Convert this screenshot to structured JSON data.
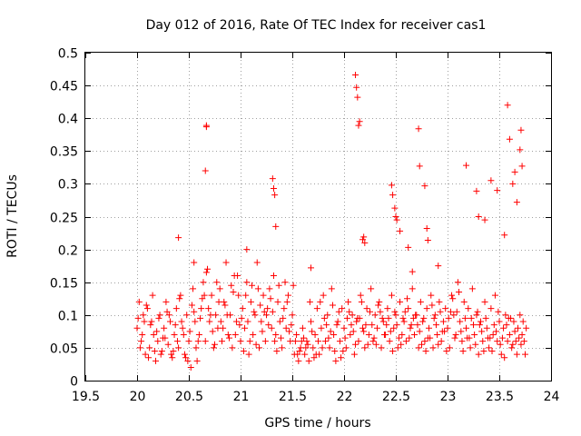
{
  "chart_data": {
    "type": "scatter",
    "title": "Day 012 of 2016, Rate Of TEC Index for receiver cas1",
    "xlabel": "GPS time / hours",
    "ylabel": "ROTI / TECUs",
    "xlim": [
      19.5,
      24
    ],
    "ylim": [
      0,
      0.5
    ],
    "xticks": [
      "19.5",
      "20",
      "20.5",
      "21",
      "21.5",
      "22",
      "22.5",
      "23",
      "23.5",
      "24"
    ],
    "yticks": [
      "0",
      "0.05",
      "0.1",
      "0.15",
      "0.2",
      "0.25",
      "0.3",
      "0.35",
      "0.4",
      "0.45",
      "0.5"
    ],
    "grid": true,
    "marker": "+",
    "color": "#ff0000",
    "series": [
      {
        "name": "ROTI",
        "x": [
          20.0,
          20.02,
          20.04,
          20.06,
          20.08,
          20.1,
          20.12,
          20.14,
          20.16,
          20.18,
          20.2,
          20.22,
          20.24,
          20.26,
          20.28,
          20.3,
          20.32,
          20.34,
          20.36,
          20.38,
          20.4,
          20.42,
          20.44,
          20.46,
          20.48,
          20.5,
          20.52,
          20.54,
          20.56,
          20.58,
          20.6,
          20.62,
          20.64,
          20.66,
          20.68,
          20.7,
          20.72,
          20.74,
          20.76,
          20.78,
          20.8,
          20.82,
          20.84,
          20.86,
          20.88,
          20.9,
          20.92,
          20.94,
          20.96,
          20.98,
          21.0,
          21.02,
          21.04,
          21.06,
          21.08,
          21.1,
          21.12,
          21.14,
          21.16,
          21.18,
          21.2,
          21.22,
          21.24,
          21.26,
          21.28,
          21.3,
          21.32,
          21.34,
          21.36,
          21.38,
          21.4,
          21.42,
          21.44,
          21.46,
          21.48,
          21.5,
          21.52,
          21.54,
          21.56,
          21.58,
          21.6,
          21.62,
          21.64,
          21.66,
          21.68,
          21.7,
          21.72,
          21.74,
          21.76,
          21.78,
          21.8,
          21.82,
          21.84,
          21.86,
          21.88,
          21.9,
          21.92,
          21.94,
          21.96,
          21.98,
          22.0,
          22.02,
          22.04,
          22.06,
          22.08,
          22.1,
          22.12,
          22.14,
          22.16,
          22.18,
          22.2,
          22.22,
          22.24,
          22.26,
          22.28,
          22.3,
          22.32,
          22.34,
          22.36,
          22.38,
          22.4,
          22.42,
          22.44,
          22.46,
          22.48,
          22.5,
          22.52,
          22.54,
          22.56,
          22.58,
          22.6,
          22.62,
          22.64,
          22.66,
          22.68,
          22.7,
          22.72,
          22.74,
          22.76,
          22.78,
          22.8,
          22.82,
          22.84,
          22.86,
          22.88,
          22.9,
          22.92,
          22.94,
          22.96,
          22.98,
          23.0,
          23.02,
          23.04,
          23.06,
          23.08,
          23.1,
          23.12,
          23.14,
          23.16,
          23.18,
          23.2,
          23.22,
          23.24,
          23.26,
          23.28,
          23.3,
          23.32,
          23.34,
          23.36,
          23.38,
          23.4,
          23.42,
          23.44,
          23.46,
          23.48,
          23.5,
          23.52,
          23.54,
          23.56,
          23.58,
          23.6,
          23.62,
          23.64,
          23.66,
          23.68,
          23.7,
          23.72,
          23.74,
          23.76,
          20.01,
          20.05,
          20.09,
          20.13,
          20.17,
          20.21,
          20.25,
          20.29,
          20.33,
          20.37,
          20.41,
          20.45,
          20.49,
          20.53,
          20.57,
          20.61,
          20.65,
          20.69,
          20.73,
          20.77,
          20.81,
          20.85,
          20.89,
          20.93,
          20.97,
          21.01,
          21.05,
          21.09,
          21.13,
          21.17,
          21.21,
          21.25,
          21.29,
          21.33,
          21.37,
          21.41,
          21.45,
          21.49,
          21.53,
          21.57,
          21.61,
          21.65,
          21.69,
          21.73,
          21.77,
          21.81,
          21.85,
          21.89,
          21.93,
          21.97,
          22.01,
          22.05,
          22.09,
          22.13,
          22.17,
          22.21,
          22.25,
          22.29,
          22.33,
          22.37,
          22.41,
          22.45,
          22.49,
          22.53,
          22.57,
          22.61,
          22.65,
          22.69,
          22.73,
          22.77,
          22.81,
          22.85,
          22.89,
          22.93,
          22.97,
          23.01,
          23.05,
          23.09,
          23.13,
          23.17,
          23.21,
          23.25,
          23.29,
          23.33,
          23.37,
          23.41,
          23.45,
          23.49,
          23.53,
          23.57,
          23.61,
          23.65,
          23.69,
          23.73,
          20.03,
          20.07,
          20.11,
          20.15,
          20.19,
          20.23,
          20.27,
          20.31,
          20.35,
          20.39,
          20.43,
          20.47,
          20.51,
          20.55,
          20.59,
          20.63,
          20.67,
          20.71,
          20.75,
          20.79,
          20.83,
          20.87,
          20.91,
          20.95,
          20.99,
          21.03,
          21.07,
          21.11,
          21.15,
          21.19,
          21.23,
          21.27,
          21.31,
          21.35,
          21.39,
          21.43,
          21.47,
          21.51,
          21.55,
          21.59,
          21.63,
          21.67,
          21.71,
          21.75,
          21.79,
          21.83,
          21.87,
          21.91,
          21.95,
          21.99,
          22.03,
          22.07,
          22.11,
          22.15,
          22.19,
          22.23,
          22.27,
          22.31,
          22.35,
          22.39,
          22.43,
          22.47,
          22.51,
          22.55,
          22.59,
          22.63,
          22.67,
          22.71,
          22.75,
          22.79,
          22.83,
          22.87,
          22.91,
          22.95,
          22.99,
          23.03,
          23.07,
          23.11,
          23.15,
          23.19,
          23.23,
          23.27,
          23.31,
          23.35,
          23.39,
          23.43,
          23.47,
          23.51,
          23.55,
          23.59,
          23.63,
          23.67,
          23.71,
          23.75,
          20.67,
          20.67,
          20.66,
          21.31,
          21.32,
          21.33,
          22.11,
          22.12,
          22.13,
          22.14,
          22.15,
          22.72,
          22.73,
          22.78,
          23.18,
          23.28,
          23.3,
          23.36,
          23.42,
          23.48,
          23.55,
          23.58,
          23.6,
          23.63,
          23.65,
          23.67,
          23.7,
          23.71,
          23.72,
          22.46,
          22.47,
          22.49,
          22.5,
          22.51,
          22.54,
          22.8,
          22.81,
          22.18,
          22.19,
          22.2,
          20.4,
          21.34,
          21.68,
          22.62,
          22.91,
          20.55,
          21.06,
          22.66
        ],
        "y": [
          0.08,
          0.12,
          0.06,
          0.1,
          0.04,
          0.11,
          0.05,
          0.09,
          0.07,
          0.03,
          0.06,
          0.1,
          0.045,
          0.08,
          0.12,
          0.055,
          0.09,
          0.035,
          0.07,
          0.11,
          0.05,
          0.13,
          0.08,
          0.04,
          0.1,
          0.06,
          0.02,
          0.14,
          0.09,
          0.03,
          0.07,
          0.11,
          0.15,
          0.06,
          0.17,
          0.09,
          0.13,
          0.05,
          0.1,
          0.08,
          0.14,
          0.06,
          0.12,
          0.18,
          0.07,
          0.1,
          0.05,
          0.16,
          0.09,
          0.13,
          0.06,
          0.11,
          0.08,
          0.15,
          0.04,
          0.12,
          0.07,
          0.1,
          0.18,
          0.05,
          0.09,
          0.13,
          0.06,
          0.11,
          0.14,
          0.08,
          0.16,
          0.07,
          0.12,
          0.09,
          0.05,
          0.11,
          0.08,
          0.13,
          0.06,
          0.1,
          0.04,
          0.07,
          0.03,
          0.05,
          0.08,
          0.04,
          0.06,
          0.03,
          0.09,
          0.05,
          0.07,
          0.11,
          0.04,
          0.08,
          0.13,
          0.06,
          0.1,
          0.05,
          0.14,
          0.07,
          0.03,
          0.09,
          0.06,
          0.11,
          0.08,
          0.05,
          0.12,
          0.07,
          0.1,
          0.04,
          0.09,
          0.06,
          0.13,
          0.08,
          0.05,
          0.11,
          0.07,
          0.14,
          0.06,
          0.1,
          0.08,
          0.12,
          0.05,
          0.09,
          0.07,
          0.11,
          0.06,
          0.13,
          0.08,
          0.1,
          0.05,
          0.12,
          0.07,
          0.09,
          0.06,
          0.11,
          0.08,
          0.14,
          0.07,
          0.1,
          0.05,
          0.12,
          0.09,
          0.06,
          0.11,
          0.08,
          0.13,
          0.05,
          0.1,
          0.07,
          0.12,
          0.06,
          0.09,
          0.11,
          0.08,
          0.05,
          0.13,
          0.1,
          0.07,
          0.15,
          0.09,
          0.06,
          0.12,
          0.08,
          0.11,
          0.05,
          0.14,
          0.07,
          0.1,
          0.04,
          0.09,
          0.06,
          0.12,
          0.08,
          0.05,
          0.11,
          0.07,
          0.13,
          0.06,
          0.09,
          0.04,
          0.08,
          0.1,
          0.06,
          0.07,
          0.05,
          0.09,
          0.06,
          0.08,
          0.1,
          0.07,
          0.06,
          0.08,
          0.095,
          0.07,
          0.115,
          0.085,
          0.045,
          0.095,
          0.065,
          0.105,
          0.04,
          0.085,
          0.125,
          0.07,
          0.03,
          0.115,
          0.05,
          0.095,
          0.13,
          0.11,
          0.075,
          0.15,
          0.09,
          0.115,
          0.065,
          0.135,
          0.16,
          0.095,
          0.13,
          0.06,
          0.105,
          0.14,
          0.075,
          0.1,
          0.125,
          0.06,
          0.145,
          0.095,
          0.12,
          0.085,
          0.06,
          0.045,
          0.065,
          0.055,
          0.075,
          0.04,
          0.12,
          0.095,
          0.065,
          0.115,
          0.085,
          0.035,
          0.065,
          0.105,
          0.075,
          0.095,
          0.12,
          0.085,
          0.105,
          0.065,
          0.115,
          0.095,
          0.085,
          0.075,
          0.105,
          0.065,
          0.095,
          0.125,
          0.085,
          0.1,
          0.075,
          0.095,
          0.065,
          0.115,
          0.085,
          0.105,
          0.075,
          0.095,
          0.125,
          0.105,
          0.075,
          0.095,
          0.065,
          0.085,
          0.105,
          0.075,
          0.095,
          0.065,
          0.085,
          0.105,
          0.065,
          0.085,
          0.095,
          0.075,
          0.065,
          0.09,
          0.05,
          0.09,
          0.035,
          0.13,
          0.075,
          0.04,
          0.065,
          0.1,
          0.045,
          0.06,
          0.09,
          0.035,
          0.075,
          0.105,
          0.06,
          0.125,
          0.165,
          0.1,
          0.055,
          0.12,
          0.08,
          0.1,
          0.145,
          0.07,
          0.085,
          0.045,
          0.09,
          0.145,
          0.055,
          0.115,
          0.105,
          0.085,
          0.105,
          0.045,
          0.065,
          0.15,
          0.075,
          0.145,
          0.04,
          0.06,
          0.05,
          0.12,
          0.035,
          0.06,
          0.05,
          0.085,
          0.075,
          0.045,
          0.105,
          0.045,
          0.095,
          0.085,
          0.055,
          0.095,
          0.075,
          0.055,
          0.085,
          0.055,
          0.105,
          0.07,
          0.095,
          0.045,
          0.085,
          0.055,
          0.105,
          0.065,
          0.095,
          0.085,
          0.055,
          0.045,
          0.065,
          0.095,
          0.055,
          0.075,
          0.045,
          0.105,
          0.065,
          0.135,
          0.045,
          0.065,
          0.095,
          0.055,
          0.085,
          0.045,
          0.065,
          0.045,
          0.075,
          0.055,
          0.035,
          0.095,
          0.055,
          0.04,
          0.055,
          0.04,
          0.389,
          0.387,
          0.32,
          0.308,
          0.293,
          0.283,
          0.466,
          0.447,
          0.432,
          0.389,
          0.395,
          0.384,
          0.327,
          0.297,
          0.328,
          0.289,
          0.25,
          0.245,
          0.305,
          0.29,
          0.222,
          0.42,
          0.368,
          0.3,
          0.318,
          0.272,
          0.352,
          0.382,
          0.327,
          0.298,
          0.283,
          0.263,
          0.25,
          0.245,
          0.228,
          0.232,
          0.214,
          0.215,
          0.219,
          0.21,
          0.218,
          0.235,
          0.172,
          0.203,
          0.175,
          0.18,
          0.2,
          0.166
        ]
      }
    ]
  }
}
